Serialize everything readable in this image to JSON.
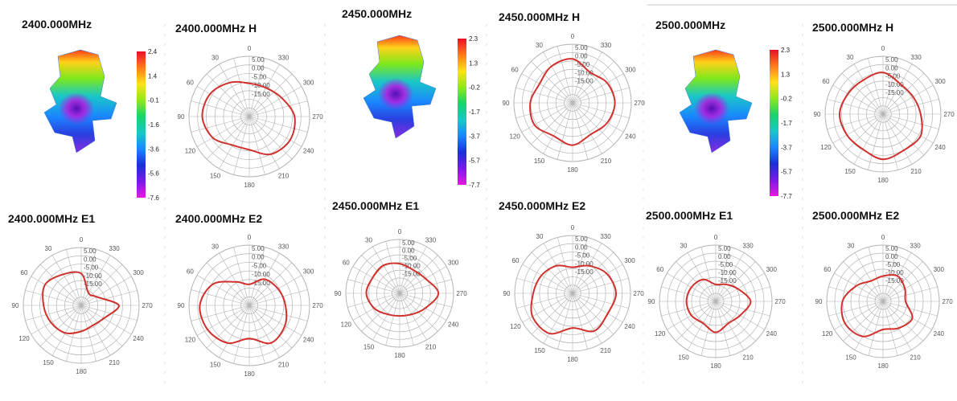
{
  "colors": {
    "pattern_line": "#d0312d",
    "grid": "#b4b4b4",
    "scale": [
      "#e8102a",
      "#ff7a1a",
      "#ffe11a",
      "#8fe81c",
      "#19d36a",
      "#19c7c7",
      "#1a86ff",
      "#1a2fd6",
      "#7a19e8",
      "#e619e0"
    ]
  },
  "panels": [
    {
      "title": "2400.000MHz"
    },
    {
      "title": "2400.000MHz H"
    },
    {
      "title": "2450.000MHz"
    },
    {
      "title": "2450.000MHz H"
    },
    {
      "title": "2500.000MHz"
    },
    {
      "title": "2500.000MHz H"
    },
    {
      "title": "2400.000MHz E1"
    },
    {
      "title": "2400.000MHz E2"
    },
    {
      "title": "2450.000MHz E1"
    },
    {
      "title": "2450.000MHz E2"
    },
    {
      "title": "2500.000MHz E1"
    },
    {
      "title": "2500.000MHz E2"
    }
  ],
  "chart_data": [
    {
      "type": "heatmap",
      "title": "2400.000MHz",
      "colorbar_ticks": [
        "2.4",
        "1.4",
        "-0.1",
        "-1.6",
        "-3.6",
        "-5.6",
        "-7.6"
      ]
    },
    {
      "type": "polar",
      "title": "2400.000MHz H",
      "angle_labels": [
        "0",
        "30",
        "60",
        "90",
        "120",
        "150",
        "180",
        "210",
        "240",
        "270",
        "300",
        "330"
      ],
      "radial_labels": [
        "5.00",
        "0.00",
        "-5.00",
        "-10.00",
        "-15.00"
      ],
      "theta": [
        0,
        30,
        60,
        90,
        120,
        150,
        180,
        210,
        240,
        270,
        300,
        330
      ],
      "r": [
        0.55,
        0.65,
        0.75,
        0.78,
        0.7,
        0.55,
        0.55,
        0.72,
        0.78,
        0.75,
        0.62,
        0.55
      ]
    },
    {
      "type": "heatmap",
      "title": "2450.000MHz",
      "colorbar_ticks": [
        "2.3",
        "1.3",
        "-0.2",
        "-1.7",
        "-3.7",
        "-5.7",
        "-7.7"
      ]
    },
    {
      "type": "polar",
      "title": "2450.000MHz H",
      "angle_labels": [
        "0",
        "30",
        "60",
        "90",
        "120",
        "150",
        "180",
        "210",
        "240",
        "270",
        "300",
        "330"
      ],
      "radial_labels": [
        "5.00",
        "0.00",
        "-5.00",
        "-10.00",
        "-15.00"
      ],
      "theta": [
        0,
        30,
        60,
        90,
        120,
        150,
        180,
        210,
        240,
        270,
        300,
        330
      ],
      "r": [
        0.75,
        0.72,
        0.65,
        0.72,
        0.75,
        0.65,
        0.72,
        0.62,
        0.68,
        0.72,
        0.68,
        0.6
      ]
    },
    {
      "type": "heatmap",
      "title": "2500.000MHz",
      "colorbar_ticks": [
        "2.3",
        "1.3",
        "-0.2",
        "-1.7",
        "-3.7",
        "-5.7",
        "-7.7"
      ]
    },
    {
      "type": "polar",
      "title": "2500.000MHz H",
      "angle_labels": [
        "0",
        "30",
        "60",
        "90",
        "120",
        "150",
        "180",
        "210",
        "240",
        "270",
        "300",
        "330"
      ],
      "radial_labels": [
        "5.00",
        "0.00",
        "-5.00",
        "-10.00",
        "-15.00"
      ],
      "theta": [
        0,
        30,
        60,
        90,
        120,
        150,
        180,
        210,
        240,
        270,
        300,
        330
      ],
      "r": [
        0.72,
        0.68,
        0.7,
        0.75,
        0.72,
        0.7,
        0.78,
        0.72,
        0.75,
        0.65,
        0.6,
        0.6
      ]
    },
    {
      "type": "polar",
      "title": "2400.000MHz E1",
      "angle_labels": [
        "0",
        "30",
        "60",
        "90",
        "120",
        "150",
        "180",
        "210",
        "240",
        "270",
        "300",
        "330"
      ],
      "radial_labels": [
        "5.00",
        "0.00",
        "-5.00",
        "-10.00",
        "-15.00"
      ],
      "theta": [
        0,
        30,
        60,
        90,
        120,
        150,
        180,
        210,
        240,
        270,
        300,
        330
      ],
      "r": [
        0.55,
        0.62,
        0.72,
        0.65,
        0.6,
        0.55,
        0.45,
        0.4,
        0.45,
        0.65,
        0.3,
        0.25
      ]
    },
    {
      "type": "polar",
      "title": "2400.000MHz E2",
      "angle_labels": [
        "0",
        "30",
        "60",
        "90",
        "120",
        "150",
        "180",
        "210",
        "240",
        "270",
        "300",
        "330"
      ],
      "radial_labels": [
        "5.00",
        "0.00",
        "-5.00",
        "-10.00",
        "-15.00"
      ],
      "theta": [
        0,
        30,
        60,
        90,
        120,
        150,
        180,
        210,
        240,
        270,
        300,
        330
      ],
      "r": [
        0.35,
        0.45,
        0.7,
        0.82,
        0.8,
        0.72,
        0.55,
        0.72,
        0.68,
        0.6,
        0.55,
        0.5
      ]
    },
    {
      "type": "polar",
      "title": "2450.000MHz E1",
      "angle_labels": [
        "0",
        "30",
        "60",
        "90",
        "120",
        "150",
        "180",
        "210",
        "240",
        "270",
        "300",
        "330"
      ],
      "radial_labels": [
        "5.00",
        "0.00",
        "-5.00",
        "-10.00",
        "-15.00"
      ],
      "theta": [
        0,
        30,
        60,
        90,
        120,
        150,
        180,
        210,
        240,
        270,
        300,
        330
      ],
      "r": [
        0.55,
        0.6,
        0.58,
        0.62,
        0.55,
        0.45,
        0.42,
        0.45,
        0.55,
        0.72,
        0.55,
        0.5
      ]
    },
    {
      "type": "polar",
      "title": "2450.000MHz E2",
      "angle_labels": [
        "0",
        "30",
        "60",
        "90",
        "120",
        "150",
        "180",
        "210",
        "240",
        "270",
        "300",
        "330"
      ],
      "radial_labels": [
        "5.00",
        "0.00",
        "-5.00",
        "-10.00",
        "-15.00"
      ],
      "theta": [
        0,
        30,
        60,
        90,
        120,
        150,
        180,
        210,
        240,
        270,
        300,
        330
      ],
      "r": [
        0.45,
        0.55,
        0.62,
        0.68,
        0.8,
        0.8,
        0.6,
        0.75,
        0.7,
        0.75,
        0.68,
        0.55
      ]
    },
    {
      "type": "polar",
      "title": "2500.000MHz E1",
      "angle_labels": [
        "0",
        "30",
        "60",
        "90",
        "120",
        "150",
        "180",
        "210",
        "240",
        "270",
        "300",
        "330"
      ],
      "radial_labels": [
        "5.00",
        "0.00",
        "-5.00",
        "-10.00",
        "-15.00"
      ],
      "theta": [
        0,
        30,
        60,
        90,
        120,
        150,
        180,
        210,
        240,
        270,
        300,
        330
      ],
      "r": [
        0.3,
        0.45,
        0.5,
        0.52,
        0.5,
        0.45,
        0.55,
        0.45,
        0.5,
        0.62,
        0.45,
        0.35
      ]
    },
    {
      "type": "polar",
      "title": "2500.000MHz E2",
      "angle_labels": [
        "0",
        "30",
        "60",
        "90",
        "120",
        "150",
        "180",
        "210",
        "240",
        "270",
        "300",
        "330"
      ],
      "radial_labels": [
        "5.00",
        "0.00",
        "-5.00",
        "-10.00",
        "-15.00"
      ],
      "theta": [
        0,
        30,
        60,
        90,
        120,
        150,
        180,
        210,
        240,
        270,
        300,
        330
      ],
      "r": [
        0.45,
        0.42,
        0.55,
        0.72,
        0.78,
        0.72,
        0.5,
        0.55,
        0.6,
        0.4,
        0.45,
        0.52
      ]
    }
  ]
}
